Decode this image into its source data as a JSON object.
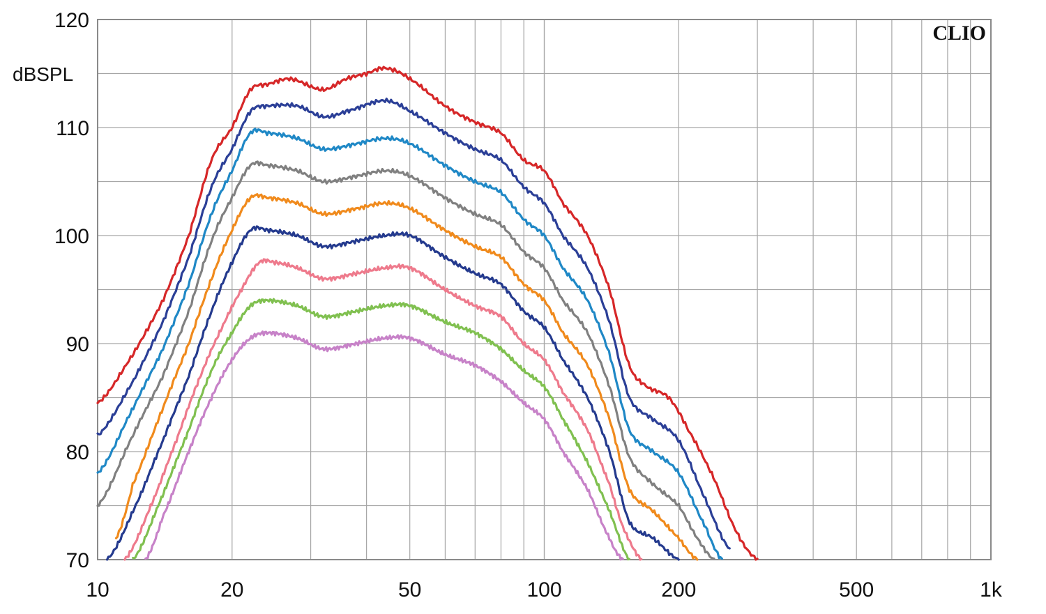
{
  "chart_data": {
    "type": "line",
    "title": "",
    "brand_label": "CLIO",
    "ylabel": "dBSPL",
    "xlabel": "",
    "x_scale": "log",
    "xlim": [
      10,
      1000
    ],
    "ylim": [
      70,
      120
    ],
    "x_ticks": [
      {
        "value": 10,
        "label": "10"
      },
      {
        "value": 20,
        "label": "20"
      },
      {
        "value": 50,
        "label": "50"
      },
      {
        "value": 100,
        "label": "100"
      },
      {
        "value": 200,
        "label": "200"
      },
      {
        "value": 500,
        "label": "500"
      },
      {
        "value": 1000,
        "label": "1k"
      }
    ],
    "y_ticks": [
      {
        "value": 70,
        "label": "70"
      },
      {
        "value": 80,
        "label": "80"
      },
      {
        "value": 90,
        "label": "90"
      },
      {
        "value": 100,
        "label": "100"
      },
      {
        "value": 110,
        "label": "110"
      },
      {
        "value": 120,
        "label": "120"
      }
    ],
    "grid": true,
    "legend": "none",
    "series": [
      {
        "color": "#d62728",
        "points": [
          [
            10,
            84.5
          ],
          [
            12,
            89
          ],
          [
            14,
            94
          ],
          [
            16,
            100
          ],
          [
            18,
            107
          ],
          [
            20,
            110
          ],
          [
            22,
            113.5
          ],
          [
            24,
            114
          ],
          [
            27,
            114.5
          ],
          [
            32,
            113.5
          ],
          [
            36,
            114.5
          ],
          [
            40,
            115
          ],
          [
            44,
            115.5
          ],
          [
            50,
            114.5
          ],
          [
            60,
            112
          ],
          [
            70,
            110.5
          ],
          [
            80,
            109.5
          ],
          [
            90,
            107
          ],
          [
            100,
            106
          ],
          [
            110,
            103
          ],
          [
            125,
            100
          ],
          [
            140,
            95
          ],
          [
            155,
            88
          ],
          [
            170,
            86
          ],
          [
            190,
            85
          ],
          [
            210,
            82
          ],
          [
            240,
            77.5
          ],
          [
            270,
            72.5
          ],
          [
            300,
            70
          ]
        ]
      },
      {
        "color": "#2b3f97",
        "points": [
          [
            10,
            81.5
          ],
          [
            12,
            86.5
          ],
          [
            14,
            92
          ],
          [
            16,
            98
          ],
          [
            18,
            104.5
          ],
          [
            20,
            108
          ],
          [
            22,
            111.5
          ],
          [
            24,
            112
          ],
          [
            28,
            112
          ],
          [
            32,
            111
          ],
          [
            36,
            111.5
          ],
          [
            44,
            112.5
          ],
          [
            50,
            111.5
          ],
          [
            60,
            109.5
          ],
          [
            70,
            108
          ],
          [
            80,
            107
          ],
          [
            90,
            104.5
          ],
          [
            100,
            103
          ],
          [
            110,
            100
          ],
          [
            125,
            97
          ],
          [
            140,
            92
          ],
          [
            155,
            85
          ],
          [
            175,
            83
          ],
          [
            200,
            81
          ],
          [
            230,
            75.5
          ],
          [
            260,
            71
          ]
        ]
      },
      {
        "color": "#1f88c6",
        "points": [
          [
            10,
            78
          ],
          [
            12,
            84
          ],
          [
            14,
            89.5
          ],
          [
            16,
            95.5
          ],
          [
            18,
            102
          ],
          [
            20,
            106
          ],
          [
            22,
            109.5
          ],
          [
            24,
            109.5
          ],
          [
            28,
            109
          ],
          [
            32,
            108
          ],
          [
            38,
            108.5
          ],
          [
            44,
            109
          ],
          [
            50,
            108.5
          ],
          [
            60,
            106.5
          ],
          [
            70,
            105
          ],
          [
            80,
            104
          ],
          [
            90,
            101.5
          ],
          [
            100,
            100
          ],
          [
            110,
            97
          ],
          [
            125,
            94
          ],
          [
            140,
            89
          ],
          [
            155,
            82
          ],
          [
            175,
            80
          ],
          [
            200,
            78
          ],
          [
            230,
            73
          ],
          [
            250,
            70
          ]
        ]
      },
      {
        "color": "#808080",
        "points": [
          [
            10,
            75
          ],
          [
            12,
            81.5
          ],
          [
            14,
            87
          ],
          [
            16,
            93
          ],
          [
            18,
            99.5
          ],
          [
            20,
            103.5
          ],
          [
            22,
            106.5
          ],
          [
            24,
            106.5
          ],
          [
            28,
            106
          ],
          [
            32,
            105
          ],
          [
            38,
            105.5
          ],
          [
            44,
            106
          ],
          [
            50,
            105.5
          ],
          [
            60,
            103.5
          ],
          [
            70,
            102
          ],
          [
            80,
            101
          ],
          [
            90,
            98.5
          ],
          [
            100,
            97
          ],
          [
            110,
            94
          ],
          [
            125,
            91
          ],
          [
            140,
            86
          ],
          [
            155,
            79.5
          ],
          [
            175,
            77
          ],
          [
            200,
            75
          ],
          [
            220,
            72
          ],
          [
            240,
            70
          ]
        ]
      },
      {
        "color": "#f08a1c",
        "points": [
          [
            11,
            72
          ],
          [
            12,
            77
          ],
          [
            14,
            84
          ],
          [
            16,
            90
          ],
          [
            18,
            96
          ],
          [
            20,
            100.5
          ],
          [
            22,
            103.5
          ],
          [
            24,
            103.5
          ],
          [
            28,
            103
          ],
          [
            32,
            102
          ],
          [
            38,
            102.5
          ],
          [
            44,
            103
          ],
          [
            50,
            102.5
          ],
          [
            60,
            100.5
          ],
          [
            70,
            99
          ],
          [
            80,
            98
          ],
          [
            90,
            95.5
          ],
          [
            100,
            94
          ],
          [
            110,
            91
          ],
          [
            125,
            88
          ],
          [
            140,
            83
          ],
          [
            155,
            76.5
          ],
          [
            175,
            74.5
          ],
          [
            200,
            72
          ],
          [
            220,
            70
          ]
        ]
      },
      {
        "color": "#243a8e",
        "points": [
          [
            10.5,
            70
          ],
          [
            12,
            74.5
          ],
          [
            14,
            81
          ],
          [
            16,
            87
          ],
          [
            18,
            93
          ],
          [
            20,
            97.5
          ],
          [
            22,
            100.5
          ],
          [
            24,
            100.5
          ],
          [
            28,
            100
          ],
          [
            32,
            99
          ],
          [
            38,
            99.5
          ],
          [
            44,
            100
          ],
          [
            50,
            100
          ],
          [
            60,
            98
          ],
          [
            70,
            96.5
          ],
          [
            80,
            95.5
          ],
          [
            90,
            93
          ],
          [
            100,
            91.5
          ],
          [
            110,
            88.5
          ],
          [
            125,
            85
          ],
          [
            140,
            80
          ],
          [
            155,
            73.5
          ],
          [
            175,
            72
          ],
          [
            200,
            70
          ]
        ]
      },
      {
        "color": "#ee7a8c",
        "points": [
          [
            11.5,
            70
          ],
          [
            13,
            74.5
          ],
          [
            15,
            81
          ],
          [
            17,
            87
          ],
          [
            19,
            91.5
          ],
          [
            21,
            95
          ],
          [
            23,
            97.5
          ],
          [
            25,
            97.5
          ],
          [
            28,
            97
          ],
          [
            32,
            96
          ],
          [
            38,
            96.5
          ],
          [
            44,
            97
          ],
          [
            50,
            97
          ],
          [
            60,
            95
          ],
          [
            70,
            93.5
          ],
          [
            80,
            92.5
          ],
          [
            90,
            90
          ],
          [
            100,
            88.5
          ],
          [
            110,
            85.5
          ],
          [
            125,
            82
          ],
          [
            140,
            77
          ],
          [
            150,
            73
          ],
          [
            165,
            70
          ]
        ]
      },
      {
        "color": "#80c050",
        "points": [
          [
            12,
            70
          ],
          [
            14,
            76
          ],
          [
            16,
            82
          ],
          [
            18,
            87.5
          ],
          [
            20,
            91
          ],
          [
            22,
            93.5
          ],
          [
            24,
            94
          ],
          [
            28,
            93.5
          ],
          [
            32,
            92.5
          ],
          [
            38,
            93
          ],
          [
            44,
            93.5
          ],
          [
            50,
            93.5
          ],
          [
            60,
            92
          ],
          [
            70,
            91
          ],
          [
            80,
            89.5
          ],
          [
            90,
            87.5
          ],
          [
            100,
            86
          ],
          [
            110,
            83
          ],
          [
            125,
            79
          ],
          [
            140,
            74.5
          ],
          [
            155,
            70
          ]
        ]
      },
      {
        "color": "#c782c8",
        "points": [
          [
            12.8,
            70
          ],
          [
            14,
            74
          ],
          [
            16,
            80
          ],
          [
            18,
            85
          ],
          [
            20,
            88.5
          ],
          [
            22,
            90.5
          ],
          [
            24,
            91
          ],
          [
            28,
            90.5
          ],
          [
            32,
            89.5
          ],
          [
            38,
            90
          ],
          [
            44,
            90.5
          ],
          [
            50,
            90.5
          ],
          [
            60,
            89
          ],
          [
            70,
            88
          ],
          [
            80,
            86.5
          ],
          [
            90,
            84.5
          ],
          [
            100,
            83
          ],
          [
            110,
            80
          ],
          [
            125,
            76.5
          ],
          [
            140,
            72
          ],
          [
            150,
            70
          ]
        ]
      }
    ]
  }
}
